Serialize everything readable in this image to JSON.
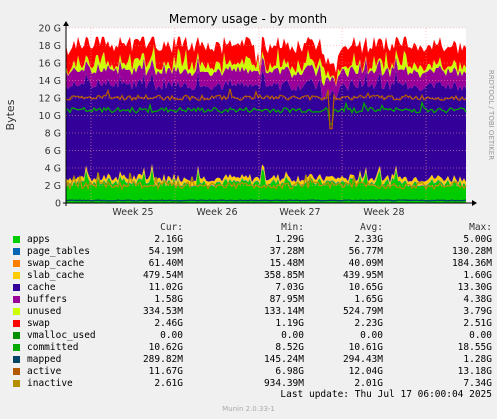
{
  "chart_data": {
    "type": "area",
    "title": "Memory usage - by month",
    "ylabel": "Bytes",
    "ylim": [
      0,
      20
    ],
    "y_unit_label": "G",
    "yticks": [
      "0",
      "2 G",
      "4 G",
      "6 G",
      "8 G",
      "10 G",
      "12 G",
      "14 G",
      "16 G",
      "18 G",
      "20 G"
    ],
    "xticks": [
      "Week 25",
      "Week 26",
      "Week 27",
      "Week 28"
    ],
    "grid": true,
    "side_text": "RRDTOOL / TOBI OETIKER",
    "series": [
      {
        "name": "apps",
        "color": "#00cc00",
        "approx_G": 2.33
      },
      {
        "name": "page_tables",
        "color": "#0066b3",
        "approx_G": 0.06
      },
      {
        "name": "swap_cache",
        "color": "#ff8000",
        "approx_G": 0.04
      },
      {
        "name": "slab_cache",
        "color": "#ffcc00",
        "approx_G": 0.44
      },
      {
        "name": "cache",
        "color": "#330099",
        "approx_G": 10.65
      },
      {
        "name": "buffers",
        "color": "#990099",
        "approx_G": 1.65
      },
      {
        "name": "unused",
        "color": "#ccff00",
        "approx_G": 0.52
      },
      {
        "name": "swap",
        "color": "#ff0000",
        "approx_G": 2.23
      },
      {
        "name": "committed",
        "color": "#00aa00",
        "line": true,
        "approx_G": 10.61
      },
      {
        "name": "mapped",
        "color": "#004466",
        "line": true,
        "approx_G": 0.29
      },
      {
        "name": "active",
        "color": "#b35a00",
        "line": true,
        "approx_G": 12.04
      },
      {
        "name": "inactive",
        "color": "#b38f00",
        "line": true,
        "approx_G": 2.01
      }
    ]
  },
  "legend": {
    "headers": {
      "cur": "Cur:",
      "min": "Min:",
      "avg": "Avg:",
      "max": "Max:"
    },
    "rows": [
      {
        "name": "apps",
        "color": "#00cc00",
        "cur": "2.16G",
        "min": "1.29G",
        "avg": "2.33G",
        "max": "5.00G"
      },
      {
        "name": "page_tables",
        "color": "#0066b3",
        "cur": "54.19M",
        "min": "37.28M",
        "avg": "56.77M",
        "max": "130.28M"
      },
      {
        "name": "swap_cache",
        "color": "#ff8000",
        "cur": "61.40M",
        "min": "15.48M",
        "avg": "40.09M",
        "max": "184.36M"
      },
      {
        "name": "slab_cache",
        "color": "#ffcc00",
        "cur": "479.54M",
        "min": "358.85M",
        "avg": "439.95M",
        "max": "1.60G"
      },
      {
        "name": "cache",
        "color": "#330099",
        "cur": "11.02G",
        "min": "7.03G",
        "avg": "10.65G",
        "max": "13.30G"
      },
      {
        "name": "buffers",
        "color": "#990099",
        "cur": "1.58G",
        "min": "87.95M",
        "avg": "1.65G",
        "max": "4.38G"
      },
      {
        "name": "unused",
        "color": "#ccff00",
        "cur": "334.53M",
        "min": "133.14M",
        "avg": "524.79M",
        "max": "3.79G"
      },
      {
        "name": "swap",
        "color": "#ff0000",
        "cur": "2.46G",
        "min": "1.19G",
        "avg": "2.23G",
        "max": "2.51G"
      },
      {
        "name": "vmalloc_used",
        "color": "#008f00",
        "cur": "0.00",
        "min": "0.00",
        "avg": "0.00",
        "max": "0.00"
      },
      {
        "name": "committed",
        "color": "#00aa00",
        "cur": "10.62G",
        "min": "8.52G",
        "avg": "10.61G",
        "max": "18.55G"
      },
      {
        "name": "mapped",
        "color": "#004466",
        "cur": "289.82M",
        "min": "145.24M",
        "avg": "294.43M",
        "max": "1.28G"
      },
      {
        "name": "active",
        "color": "#b35a00",
        "cur": "11.67G",
        "min": "6.98G",
        "avg": "12.04G",
        "max": "13.18G"
      },
      {
        "name": "inactive",
        "color": "#b38f00",
        "cur": "2.61G",
        "min": "934.39M",
        "avg": "2.01G",
        "max": "7.34G"
      }
    ]
  },
  "last_update": "Last update: Thu Jul 17 06:00:04 2025",
  "footer": "Munin 2.0.33-1"
}
